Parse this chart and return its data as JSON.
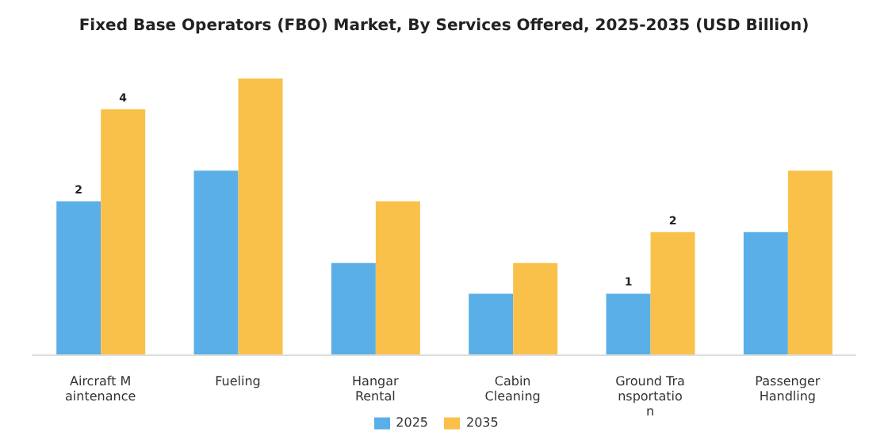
{
  "chart_data": {
    "type": "bar",
    "title": "Fixed Base Operators (FBO) Market, By Services Offered, 2025-2035 (USD Billion)",
    "categories": [
      "Aircraft Maintenance",
      "Fueling",
      "Hangar Rental",
      "Cabin Cleaning",
      "Ground Transportation",
      "Passenger Handling"
    ],
    "series": [
      {
        "name": "2025",
        "color": "#5aafe6",
        "values": [
          2.5,
          3.0,
          1.5,
          1.0,
          1.0,
          2.0
        ],
        "value_labels": [
          "2",
          null,
          null,
          null,
          "1",
          null
        ]
      },
      {
        "name": "2035",
        "color": "#f9c04a",
        "values": [
          4.0,
          4.5,
          2.5,
          1.5,
          2.0,
          3.0
        ],
        "value_labels": [
          "4",
          null,
          null,
          null,
          "2",
          null
        ]
      }
    ],
    "tick_labels": "x",
    "grid": false,
    "legend": "bottom"
  }
}
